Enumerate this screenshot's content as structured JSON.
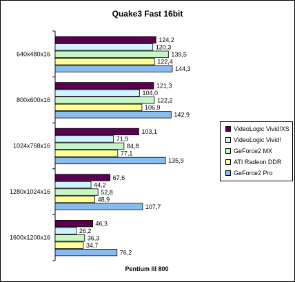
{
  "chart_data": {
    "type": "bar",
    "orientation": "horizontal",
    "title": "Quake3 Fast 16bit",
    "xlabel": "Pentium III 800",
    "ylabel": "",
    "categories": [
      "640x480x16",
      "800x600x16",
      "1024x768x16",
      "1280x1024x16",
      "1600x1200x16"
    ],
    "series": [
      {
        "name": "VideoLogic Vivid!XS",
        "color": "#5a0050",
        "values": [
          124.2,
          121.3,
          103.1,
          67.6,
          46.3
        ],
        "labels": [
          "124,2",
          "121,3",
          "103,1",
          "67,6",
          "46,3"
        ]
      },
      {
        "name": "VideoLogic Vivid!",
        "color": "#ccf5ff",
        "values": [
          120.3,
          104.0,
          71.9,
          44.2,
          26.2
        ],
        "labels": [
          "120,3",
          "104,0",
          "71,9",
          "44,2",
          "26,2"
        ]
      },
      {
        "name": "GeForce2 MX",
        "color": "#c6f5c6",
        "values": [
          139.5,
          122.2,
          84.8,
          52.8,
          36.3
        ],
        "labels": [
          "139,5",
          "122,2",
          "84,8",
          "52,8",
          "36,3"
        ]
      },
      {
        "name": "ATI Radeon DDR",
        "color": "#ffff99",
        "values": [
          122.4,
          106.9,
          77.1,
          48.9,
          34.7
        ],
        "labels": [
          "122,4",
          "106,9",
          "77,1",
          "48,9",
          "34,7"
        ]
      },
      {
        "name": "GeForce2 Pro",
        "color": "#88bbee",
        "values": [
          144.3,
          142.9,
          135.9,
          107.7,
          76.2
        ],
        "labels": [
          "144,3",
          "142,9",
          "135,9",
          "107,7",
          "76,2"
        ]
      }
    ],
    "xlim": [
      0,
      160
    ],
    "grid": false,
    "legend_position": "right"
  }
}
